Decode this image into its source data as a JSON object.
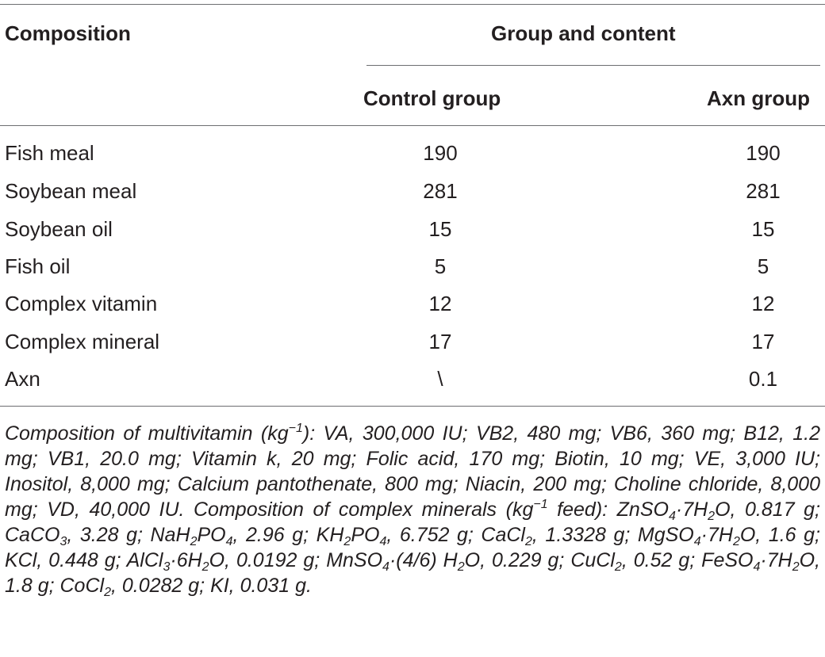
{
  "table": {
    "header": {
      "composition": "Composition",
      "group_and_content": "Group and content",
      "control_group": "Control group",
      "axn_group": "Axn group"
    },
    "rows": [
      {
        "composition": "Fish meal",
        "control": "190",
        "axn": "190"
      },
      {
        "composition": "Soybean meal",
        "control": "281",
        "axn": "281"
      },
      {
        "composition": "Soybean oil",
        "control": "15",
        "axn": "15"
      },
      {
        "composition": "Fish oil",
        "control": "5",
        "axn": "5"
      },
      {
        "composition": "Complex vitamin",
        "control": "12",
        "axn": "12"
      },
      {
        "composition": "Complex mineral",
        "control": "17",
        "axn": "17"
      },
      {
        "composition": "Axn",
        "control": "\\",
        "axn": "0.1"
      }
    ]
  },
  "footnote": {
    "p1": "Composition of multivitamin (kg",
    "sup_neg1": "−1",
    "p2": "): VA, 300,000 IU; VB2, 480 mg; VB6, 360 mg; B12, 1.2 mg; VB1, 20.0 mg; Vitamin k, 20 mg; Folic acid, 170 mg; Biotin, 10 mg; VE, 3,000 IU; Inositol, 8,000 mg; Calcium pantothenate, 800 mg; Niacin, 200 mg; Choline chloride, 8,000 mg; VD, 40,000 IU. Composition of complex minerals (kg",
    "p3": " feed): ZnSO",
    "sub4": "4",
    "sub2": "2",
    "sub3": "3",
    "p4": "·7H",
    "p5": "O, 0.817 g; CaCO",
    "p6": ", 3.28 g; NaH",
    "p7": "PO",
    "p8": ", 2.96 g; KH",
    "p9": ", 6.752 g; CaCl",
    "p10": ", 1.3328 g; MgSO",
    "p11": "O, 1.6 g; KCl, 0.448 g; AlCl",
    "p12": "·6H",
    "p13": "O, 0.0192 g; MnSO",
    "p14": "·(4/6) H",
    "p15": "O, 0.229 g; CuCl",
    "p16": ", 0.52 g; FeSO",
    "p17": "O, 1.8 g; CoCl",
    "p18": ", 0.0282 g; KI, 0.031 g."
  }
}
